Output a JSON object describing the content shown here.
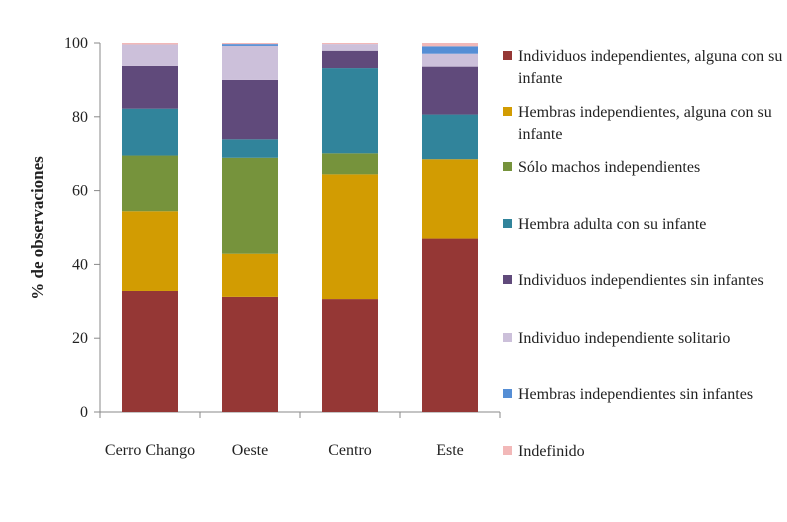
{
  "chart_data": {
    "type": "bar",
    "stacked": true,
    "percent": true,
    "categories": [
      "Cerro Chango",
      "Oeste",
      "Centro",
      "Este"
    ],
    "ylabel": "% de observaciones",
    "xlabel": "",
    "ylim": [
      0,
      100
    ],
    "yticks": [
      "0",
      "20",
      "40",
      "60",
      "80",
      "100"
    ],
    "legend_position": "right",
    "series": [
      {
        "name": "Individuos independientes, alguna con su infante",
        "color": "#953735",
        "values": [
          32.8,
          31.2,
          30.6,
          47.0
        ]
      },
      {
        "name": "Hembras independientes, alguna con su infante",
        "color": "#d29c02",
        "values": [
          21.6,
          11.7,
          33.8,
          21.5
        ]
      },
      {
        "name": "Sólo machos independientes",
        "color": "#76933c",
        "values": [
          15.1,
          26.0,
          5.7,
          0.0
        ]
      },
      {
        "name": "Hembra adulta con su infante",
        "color": "#31849b",
        "values": [
          12.7,
          5.0,
          23.1,
          12.1
        ]
      },
      {
        "name": "Individuos independientes sin infantes",
        "color": "#604a7b",
        "values": [
          11.6,
          16.1,
          4.7,
          13.0
        ]
      },
      {
        "name": "Individuo independiente solitario",
        "color": "#ccc0da",
        "values": [
          5.8,
          9.2,
          1.8,
          3.5
        ]
      },
      {
        "name": "Hembras independientes sin infantes",
        "color": "#558ed5",
        "values": [
          0.0,
          0.5,
          0.0,
          2.0
        ]
      },
      {
        "name": "Indefinido",
        "color": "#f2b8b8",
        "values": [
          0.4,
          0.3,
          0.3,
          0.9
        ]
      }
    ]
  }
}
